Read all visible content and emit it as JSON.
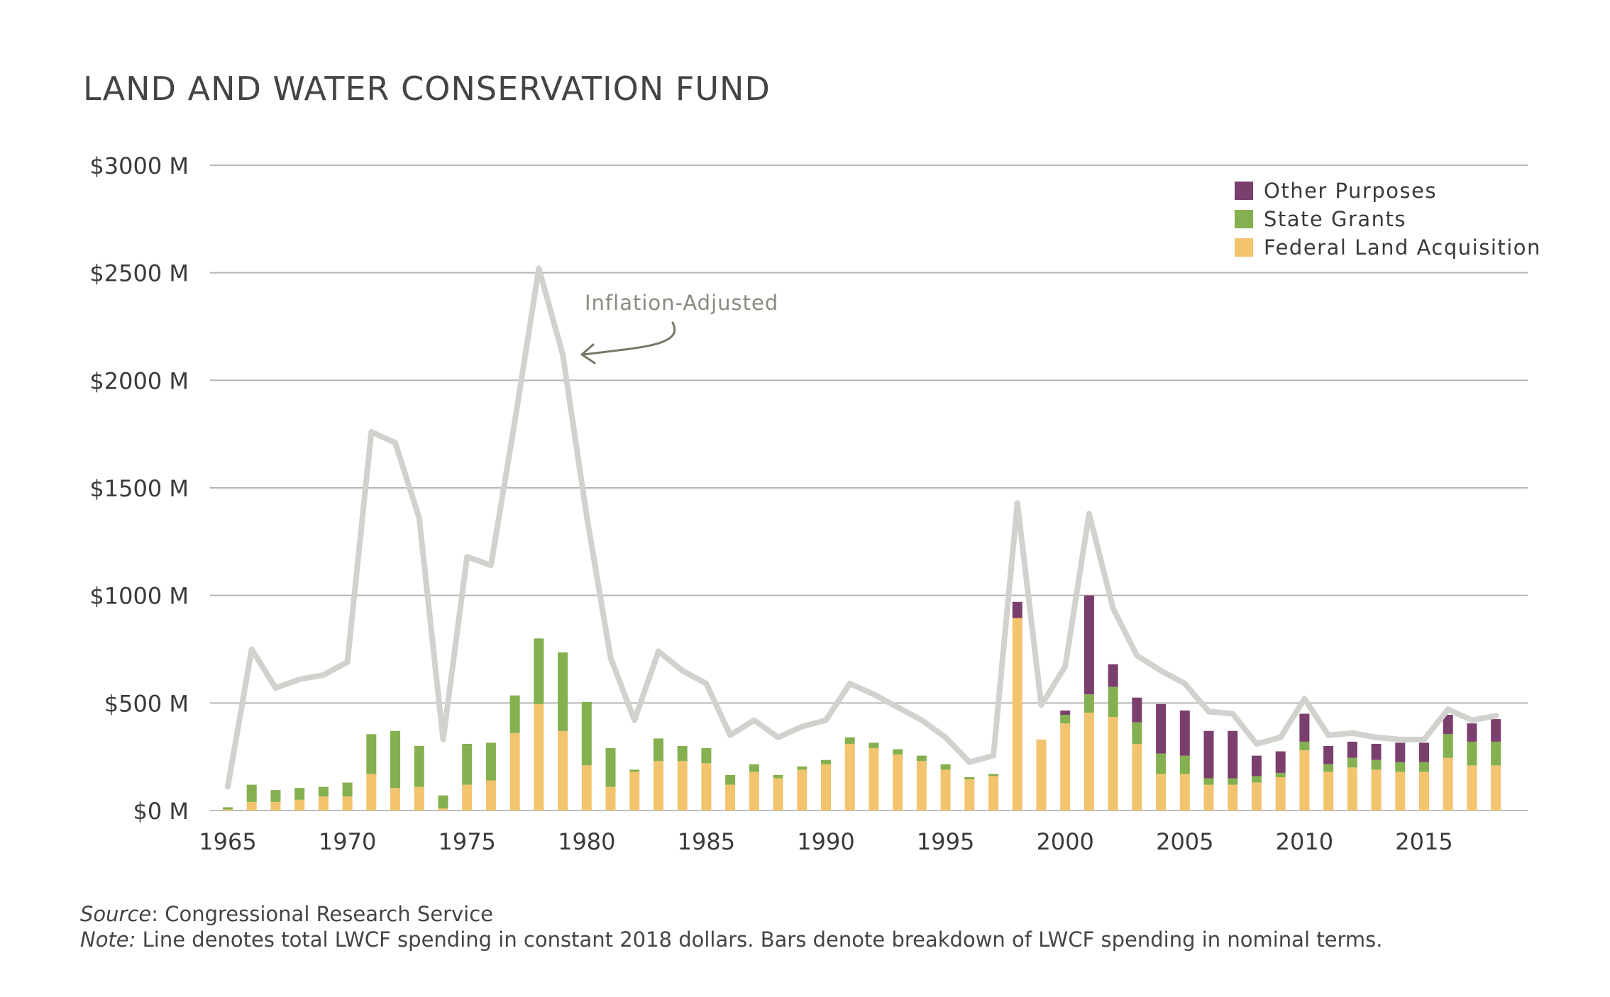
{
  "chart_data": {
    "type": "bar",
    "title": "LAND AND WATER CONSERVATION FUND",
    "xlabel": "",
    "ylabel": "",
    "ylim": [
      0,
      3000
    ],
    "y_ticks": [
      0,
      500,
      1000,
      1500,
      2000,
      2500,
      3000
    ],
    "y_tick_labels": [
      "$0 M",
      "$500 M",
      "$1000 M",
      "$1500 M",
      "$2000 M",
      "$2500 M",
      "$3000 M"
    ],
    "x_tick_labels": [
      "1965",
      "1970",
      "1975",
      "1980",
      "1985",
      "1990",
      "1995",
      "2000",
      "2005",
      "2010",
      "2015"
    ],
    "grid": true,
    "legend_position": "top-right",
    "categories": [
      1965,
      1966,
      1967,
      1968,
      1969,
      1970,
      1971,
      1972,
      1973,
      1974,
      1975,
      1976,
      1977,
      1978,
      1979,
      1980,
      1981,
      1982,
      1983,
      1984,
      1985,
      1986,
      1987,
      1988,
      1989,
      1990,
      1991,
      1992,
      1993,
      1994,
      1995,
      1996,
      1997,
      1998,
      1999,
      2000,
      2001,
      2002,
      2003,
      2004,
      2005,
      2006,
      2007,
      2008,
      2009,
      2010,
      2011,
      2012,
      2013,
      2014,
      2015,
      2016,
      2017,
      2018
    ],
    "series": [
      {
        "name": "Federal Land Acquisition",
        "kind": "bar",
        "color": "#f2c46e",
        "values": [
          5,
          40,
          40,
          50,
          65,
          65,
          170,
          105,
          110,
          10,
          120,
          140,
          360,
          495,
          370,
          210,
          110,
          180,
          230,
          230,
          220,
          120,
          180,
          150,
          190,
          215,
          310,
          290,
          260,
          230,
          190,
          145,
          160,
          895,
          330,
          405,
          455,
          435,
          310,
          170,
          170,
          120,
          120,
          130,
          155,
          280,
          180,
          200,
          190,
          180,
          180,
          245,
          210,
          210
        ]
      },
      {
        "name": "State Grants",
        "kind": "bar",
        "color": "#84b050",
        "values": [
          10,
          80,
          55,
          55,
          45,
          65,
          185,
          265,
          190,
          60,
          190,
          175,
          175,
          305,
          365,
          295,
          180,
          10,
          105,
          70,
          70,
          45,
          35,
          15,
          15,
          20,
          30,
          25,
          25,
          25,
          25,
          10,
          10,
          0,
          0,
          40,
          85,
          140,
          100,
          95,
          85,
          30,
          30,
          30,
          20,
          40,
          35,
          45,
          45,
          45,
          45,
          110,
          110,
          110
        ]
      },
      {
        "name": "Other Purposes",
        "kind": "bar",
        "color": "#7b3f6e",
        "values": [
          0,
          0,
          0,
          0,
          0,
          0,
          0,
          0,
          0,
          0,
          0,
          0,
          0,
          0,
          0,
          0,
          0,
          0,
          0,
          0,
          0,
          0,
          0,
          0,
          0,
          0,
          0,
          0,
          0,
          0,
          0,
          0,
          0,
          75,
          0,
          20,
          460,
          105,
          115,
          230,
          210,
          220,
          220,
          95,
          100,
          130,
          85,
          75,
          75,
          90,
          90,
          90,
          85,
          105
        ]
      },
      {
        "name": "Inflation-Adjusted",
        "kind": "line",
        "color": "#d3d1cd",
        "values": [
          110,
          750,
          570,
          610,
          630,
          690,
          1760,
          1710,
          1360,
          330,
          1180,
          1140,
          1810,
          2520,
          2120,
          1370,
          710,
          420,
          740,
          650,
          590,
          350,
          420,
          340,
          390,
          420,
          590,
          540,
          480,
          420,
          340,
          225,
          255,
          1430,
          490,
          670,
          1380,
          940,
          720,
          650,
          590,
          460,
          450,
          310,
          340,
          520,
          350,
          360,
          340,
          330,
          330,
          470,
          420,
          440
        ]
      }
    ],
    "legend": [
      "Other Purposes",
      "State Grants",
      "Federal Land Acquisition"
    ],
    "annotation": {
      "text": "Inflation-Adjusted",
      "color": "#8a8a80",
      "points_to_year": 1979
    }
  },
  "footer": {
    "source_lead": "Source",
    "source_text": ": Congressional Research Service",
    "note_lead": "Note:",
    "note_text": " Line denotes total LWCF spending in constant 2018 dollars. Bars denote breakdown of LWCF spending in nominal terms."
  }
}
